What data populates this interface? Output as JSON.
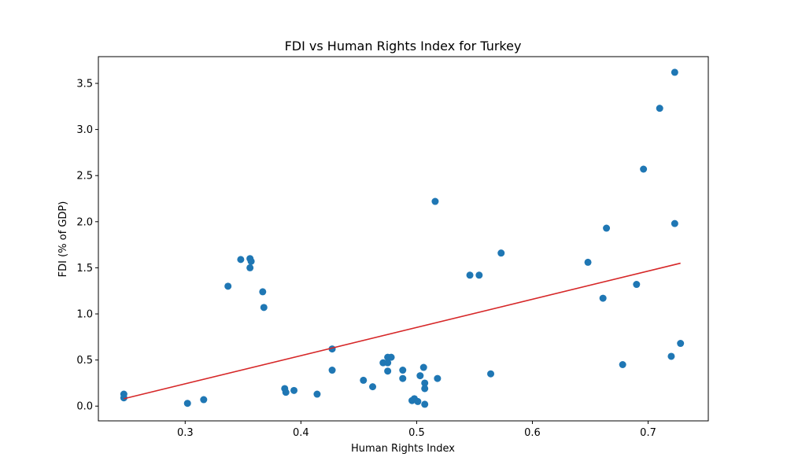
{
  "chart_data": {
    "type": "scatter",
    "title": "FDI vs Human Rights Index for Turkey",
    "xlabel": "Human Rights Index",
    "ylabel": "FDI (% of GDP)",
    "xlim": [
      0.225,
      0.752
    ],
    "ylim": [
      -0.16,
      3.79
    ],
    "xticks": [
      0.3,
      0.4,
      0.5,
      0.6,
      0.7
    ],
    "xtick_labels": [
      "0.3",
      "0.4",
      "0.5",
      "0.6",
      "0.7"
    ],
    "yticks": [
      0.0,
      0.5,
      1.0,
      1.5,
      2.0,
      2.5,
      3.0,
      3.5
    ],
    "ytick_labels": [
      "0.0",
      "0.5",
      "1.0",
      "1.5",
      "2.0",
      "2.5",
      "3.0",
      "3.5"
    ],
    "grid": false,
    "colors": {
      "points": "#1f77b4",
      "trend": "#d62728"
    },
    "points": [
      {
        "x": 0.247,
        "y": 0.13
      },
      {
        "x": 0.247,
        "y": 0.09
      },
      {
        "x": 0.302,
        "y": 0.03
      },
      {
        "x": 0.316,
        "y": 0.07
      },
      {
        "x": 0.337,
        "y": 1.3
      },
      {
        "x": 0.348,
        "y": 1.59
      },
      {
        "x": 0.356,
        "y": 1.6
      },
      {
        "x": 0.357,
        "y": 1.57
      },
      {
        "x": 0.356,
        "y": 1.5
      },
      {
        "x": 0.367,
        "y": 1.24
      },
      {
        "x": 0.368,
        "y": 1.07
      },
      {
        "x": 0.386,
        "y": 0.19
      },
      {
        "x": 0.387,
        "y": 0.15
      },
      {
        "x": 0.394,
        "y": 0.17
      },
      {
        "x": 0.414,
        "y": 0.13
      },
      {
        "x": 0.427,
        "y": 0.62
      },
      {
        "x": 0.427,
        "y": 0.39
      },
      {
        "x": 0.454,
        "y": 0.28
      },
      {
        "x": 0.462,
        "y": 0.21
      },
      {
        "x": 0.471,
        "y": 0.47
      },
      {
        "x": 0.475,
        "y": 0.53
      },
      {
        "x": 0.478,
        "y": 0.53
      },
      {
        "x": 0.475,
        "y": 0.47
      },
      {
        "x": 0.475,
        "y": 0.38
      },
      {
        "x": 0.488,
        "y": 0.39
      },
      {
        "x": 0.488,
        "y": 0.3
      },
      {
        "x": 0.496,
        "y": 0.06
      },
      {
        "x": 0.498,
        "y": 0.08
      },
      {
        "x": 0.501,
        "y": 0.05
      },
      {
        "x": 0.503,
        "y": 0.33
      },
      {
        "x": 0.506,
        "y": 0.42
      },
      {
        "x": 0.507,
        "y": 0.25
      },
      {
        "x": 0.507,
        "y": 0.19
      },
      {
        "x": 0.507,
        "y": 0.02
      },
      {
        "x": 0.516,
        "y": 2.22
      },
      {
        "x": 0.518,
        "y": 0.3
      },
      {
        "x": 0.546,
        "y": 1.42
      },
      {
        "x": 0.554,
        "y": 1.42
      },
      {
        "x": 0.564,
        "y": 0.35
      },
      {
        "x": 0.573,
        "y": 1.66
      },
      {
        "x": 0.648,
        "y": 1.56
      },
      {
        "x": 0.661,
        "y": 1.17
      },
      {
        "x": 0.664,
        "y": 1.93
      },
      {
        "x": 0.678,
        "y": 0.45
      },
      {
        "x": 0.69,
        "y": 1.32
      },
      {
        "x": 0.696,
        "y": 2.57
      },
      {
        "x": 0.71,
        "y": 3.23
      },
      {
        "x": 0.72,
        "y": 0.54
      },
      {
        "x": 0.723,
        "y": 1.98
      },
      {
        "x": 0.723,
        "y": 3.62
      },
      {
        "x": 0.728,
        "y": 0.68
      }
    ],
    "trendline": {
      "x": [
        0.247,
        0.728
      ],
      "y": [
        0.08,
        1.55
      ]
    }
  }
}
